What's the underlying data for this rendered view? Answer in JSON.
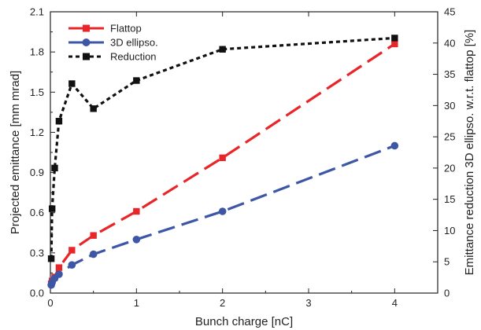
{
  "chart_data": {
    "type": "line",
    "xlabel": "Bunch charge [nC]",
    "ylabel": "Projected emittance [mm mrad]",
    "y2label": "Emittance reduction 3D ellipso. w.r.t. flattop [%]",
    "xlim": [
      0,
      4.5
    ],
    "ylim": [
      0,
      2.1
    ],
    "y2lim": [
      0,
      45
    ],
    "x_ticks": [
      "0",
      "1",
      "2",
      "3",
      "4"
    ],
    "y_ticks": [
      "0.0",
      "0.3",
      "0.6",
      "0.9",
      "1.2",
      "1.5",
      "1.8",
      "2.1"
    ],
    "y2_ticks": [
      "0",
      "5",
      "10",
      "15",
      "20",
      "25",
      "30",
      "35",
      "40",
      "45"
    ],
    "grid": false,
    "legend_position": "top-left",
    "series": [
      {
        "name": "Flattop",
        "axis": "left",
        "color": "#e8262a",
        "marker": "square",
        "line_style": "dashed",
        "x": [
          0.01,
          0.02,
          0.05,
          0.1,
          0.25,
          0.5,
          1,
          2,
          4
        ],
        "y": [
          0.07,
          0.09,
          0.12,
          0.19,
          0.32,
          0.43,
          0.61,
          1.01,
          1.86
        ]
      },
      {
        "name": "3D ellipso.",
        "axis": "left",
        "color": "#3d56a6",
        "marker": "circle",
        "line_style": "dashed",
        "x": [
          0.01,
          0.02,
          0.05,
          0.1,
          0.25,
          0.5,
          1,
          2,
          4
        ],
        "y": [
          0.06,
          0.08,
          0.11,
          0.14,
          0.21,
          0.29,
          0.4,
          0.61,
          1.1
        ]
      },
      {
        "name": "Reduction",
        "axis": "right",
        "color": "#111111",
        "marker": "square",
        "line_style": "dotted",
        "x": [
          0.01,
          0.02,
          0.05,
          0.1,
          0.25,
          0.5,
          1,
          2,
          4
        ],
        "y": [
          5.5,
          13.5,
          20,
          27.5,
          33.5,
          29.5,
          34,
          39,
          40.8
        ]
      }
    ]
  }
}
